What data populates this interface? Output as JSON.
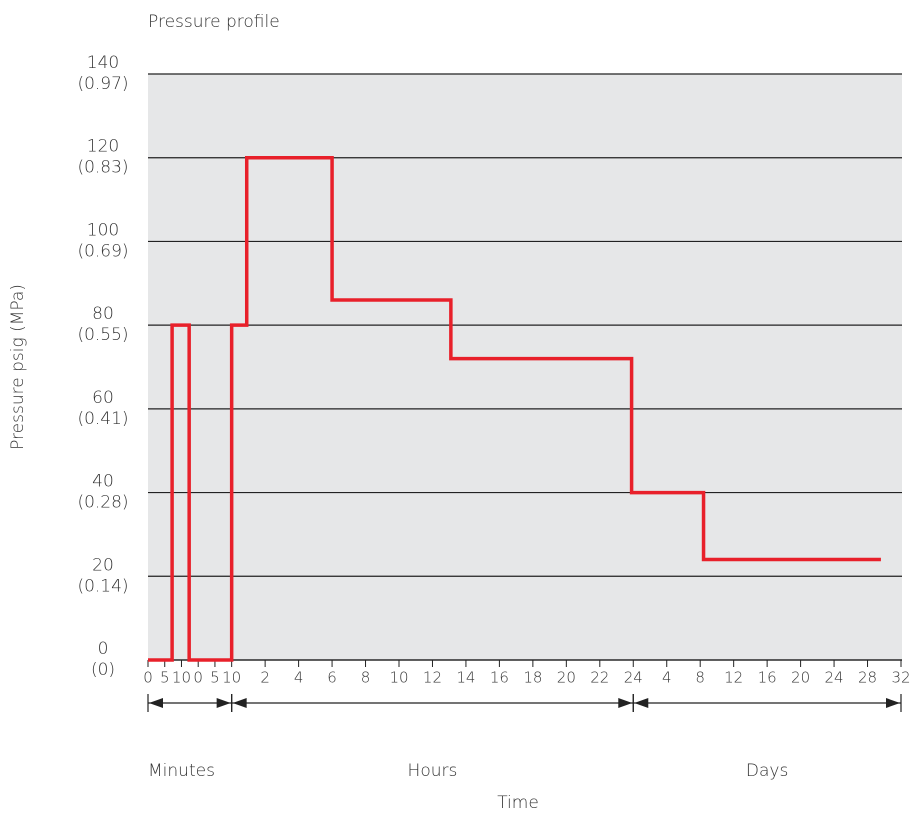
{
  "chart_data": {
    "type": "line",
    "title": "Pressure profile",
    "xlabel": "Time",
    "ylabel": "Pressure psig (MPa)",
    "x": [
      0,
      0.72,
      0.72,
      1.23,
      1.23,
      2.5,
      2.5,
      2.95,
      2.95,
      5.5,
      5.5,
      9.05,
      9.05,
      14.45,
      14.45,
      16.6,
      16.6,
      21.9
    ],
    "series": [
      {
        "color": "#e8202a",
        "values": [
          0,
          0,
          80,
          80,
          0,
          0,
          80,
          80,
          120,
          120,
          86,
          86,
          72,
          72,
          40,
          40,
          24,
          24
        ]
      }
    ],
    "xlim": [
      0,
      22.5
    ],
    "xticks": [
      {
        "value": 0,
        "label": "0"
      },
      {
        "value": 0.5,
        "label": "5"
      },
      {
        "value": 1,
        "label": "10"
      },
      {
        "value": 1.5,
        "label": "0"
      },
      {
        "value": 2,
        "label": "5"
      },
      {
        "value": 2.5,
        "label": "10"
      },
      {
        "value": 3.5,
        "label": "2"
      },
      {
        "value": 4.5,
        "label": "4"
      },
      {
        "value": 5.5,
        "label": "6"
      },
      {
        "value": 6.5,
        "label": "8"
      },
      {
        "value": 7.5,
        "label": "10"
      },
      {
        "value": 8.5,
        "label": "12"
      },
      {
        "value": 9.5,
        "label": "14"
      },
      {
        "value": 10.5,
        "label": "16"
      },
      {
        "value": 11.5,
        "label": "18"
      },
      {
        "value": 12.5,
        "label": "20"
      },
      {
        "value": 13.5,
        "label": "22"
      },
      {
        "value": 14.5,
        "label": "24"
      },
      {
        "value": 15.5,
        "label": "4"
      },
      {
        "value": 16.5,
        "label": "8"
      },
      {
        "value": 17.5,
        "label": "12"
      },
      {
        "value": 18.5,
        "label": "16"
      },
      {
        "value": 19.5,
        "label": "20"
      },
      {
        "value": 20.5,
        "label": "24"
      },
      {
        "value": 21.5,
        "label": "28"
      },
      {
        "value": 22.5,
        "label": "32"
      }
    ],
    "ylim": [
      0,
      140
    ],
    "yticks": [
      0,
      20,
      40,
      60,
      80,
      100,
      120,
      140
    ],
    "ytick_sublabels": [
      "(0)",
      "(0.14)",
      "(0.28)",
      "(0.41)",
      "(0.55)",
      "(0.69)",
      "(0.83)",
      "(0.97)"
    ],
    "segments": [
      {
        "label": "Minutes",
        "range": [
          0,
          2.5
        ]
      },
      {
        "label": "Hours",
        "range": [
          2.5,
          14.5
        ]
      },
      {
        "label": "Days",
        "range": [
          14.5,
          22.5
        ]
      }
    ],
    "grid": true
  }
}
